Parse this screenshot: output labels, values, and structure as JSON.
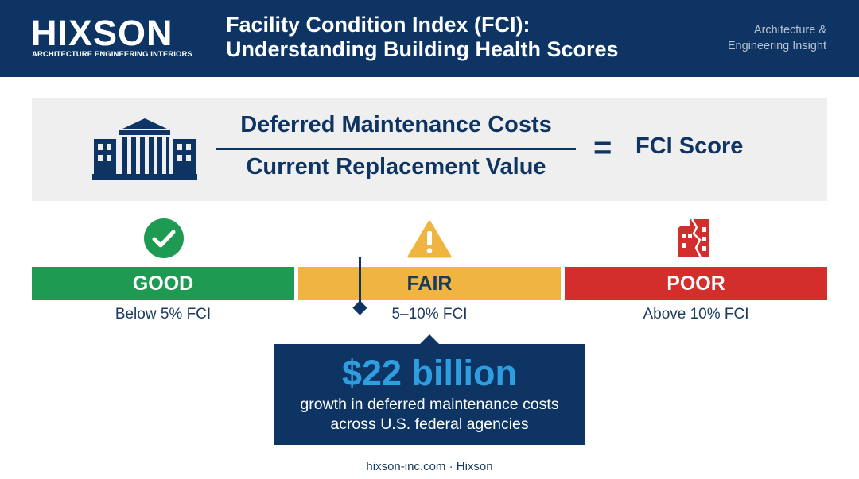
{
  "header": {
    "logo": "HIXSON",
    "logo_subtitle": "ARCHITECTURE ENGINEERING INTERIORS",
    "title_line1": "Facility Condition Index (FCI):",
    "title_line2": "Understanding Building Health Scores",
    "tagline_line1": "Architecture &",
    "tagline_line2": "Engineering Insight"
  },
  "formula": {
    "icon": "building-icon",
    "numerator": "Deferred Maintenance Costs",
    "denominator": "Current Replacement Value",
    "equals": "=",
    "result": "FCI Score"
  },
  "scale": [
    {
      "label": "GOOD",
      "range": "Below 5% FCI",
      "color": "#1e9a52",
      "icon": "check-circle-icon"
    },
    {
      "label": "FAIR",
      "range": "5–10% FCI",
      "color": "#f0b440",
      "icon": "warning-triangle-icon"
    },
    {
      "label": "POOR",
      "range": "Above 10% FCI",
      "color": "#d42e2c",
      "icon": "damaged-building-icon"
    }
  ],
  "callout": {
    "amount": "$22 billion",
    "line1": "growth in deferred maintenance costs",
    "line2": "across U.S. federal agencies"
  },
  "footer": "hixson-inc.com · Hixson"
}
